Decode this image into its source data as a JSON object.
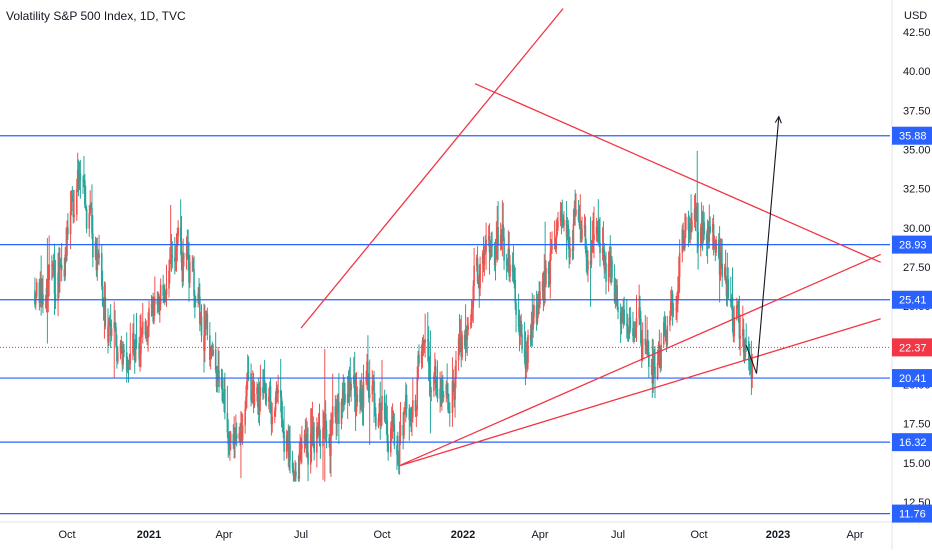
{
  "chart_data": {
    "type": "candlestick",
    "title": "Volatility S&P 500 Index, 1D, TVC",
    "currency": "USD",
    "y_ticks": [
      "12.50",
      "15.00",
      "17.50",
      "20.00",
      "22.50",
      "25.00",
      "27.50",
      "30.00",
      "32.50",
      "35.00",
      "37.50",
      "40.00",
      "42.50"
    ],
    "x_ticks": [
      "Oct",
      "2021",
      "Apr",
      "Jul",
      "Oct",
      "2022",
      "Apr",
      "Jul",
      "Oct",
      "2023",
      "Apr"
    ],
    "ylim": [
      10.5,
      44
    ],
    "horizontal_levels": [
      35.88,
      28.93,
      25.41,
      20.41,
      16.32,
      11.76
    ],
    "last_price": 22.37,
    "level_labels": [
      "35.88",
      "28.93",
      "25.41",
      "22.37",
      "20.41",
      "16.32",
      "11.76"
    ],
    "series_close_approx": [
      {
        "x": "2020-09",
        "y": 26
      },
      {
        "x": "2020-10",
        "y": 34
      },
      {
        "x": "2020-11",
        "y": 23
      },
      {
        "x": "2020-12",
        "y": 22
      },
      {
        "x": "2021-01",
        "y": 26
      },
      {
        "x": "2021-02",
        "y": 28
      },
      {
        "x": "2021-03",
        "y": 21
      },
      {
        "x": "2021-04",
        "y": 17
      },
      {
        "x": "2021-05",
        "y": 20
      },
      {
        "x": "2021-06",
        "y": 16
      },
      {
        "x": "2021-07",
        "y": 17
      },
      {
        "x": "2021-08",
        "y": 18
      },
      {
        "x": "2021-09",
        "y": 20
      },
      {
        "x": "2021-10",
        "y": 16
      },
      {
        "x": "2021-11",
        "y": 22
      },
      {
        "x": "2021-12",
        "y": 19
      },
      {
        "x": "2022-01",
        "y": 27
      },
      {
        "x": "2022-02",
        "y": 29
      },
      {
        "x": "2022-03",
        "y": 23
      },
      {
        "x": "2022-04",
        "y": 29
      },
      {
        "x": "2022-05",
        "y": 30
      },
      {
        "x": "2022-06",
        "y": 27
      },
      {
        "x": "2022-07",
        "y": 24
      },
      {
        "x": "2022-08",
        "y": 21
      },
      {
        "x": "2022-09",
        "y": 30
      },
      {
        "x": "2022-10",
        "y": 30
      },
      {
        "x": "2022-11",
        "y": 23
      },
      {
        "x": "2022-12",
        "y": 22.37
      }
    ],
    "colors": {
      "up": "#26a69a",
      "down": "#ef5350",
      "level_line": "#2962ff",
      "trend_line": "#f23645",
      "arrow": "#131722",
      "last_price_badge": "#f23645",
      "level_badge": "#2962ff"
    },
    "grid": false
  }
}
